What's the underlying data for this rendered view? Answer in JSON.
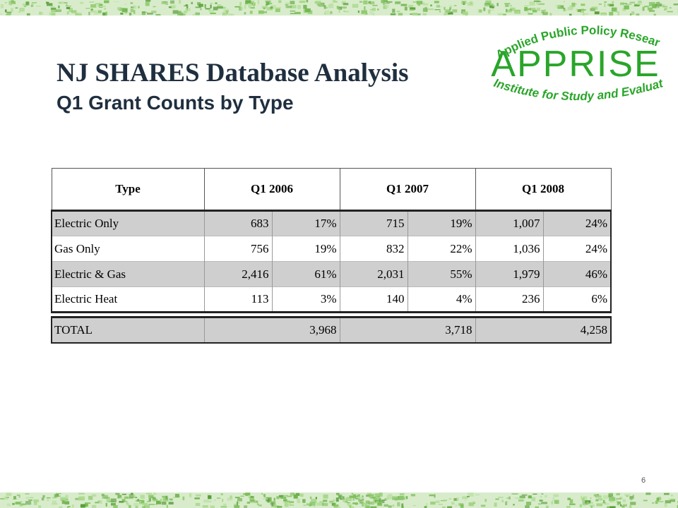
{
  "slide": {
    "title": "NJ SHARES Database Analysis",
    "subtitle": "Q1 Grant Counts by Type",
    "page_number": "6"
  },
  "logo": {
    "top_text": "Applied Public Policy Research",
    "brand": "APPRISE",
    "bottom_text": "Institute for Study and Evaluation",
    "color": "#2aa52a"
  },
  "table": {
    "headers": [
      "Type",
      "Q1 2006",
      "Q1 2007",
      "Q1 2008"
    ],
    "rows": [
      {
        "type": "Electric Only",
        "q2006_n": "683",
        "q2006_p": "17%",
        "q2007_n": "715",
        "q2007_p": "19%",
        "q2008_n": "1,007",
        "q2008_p": "24%"
      },
      {
        "type": "Gas Only",
        "q2006_n": "756",
        "q2006_p": "19%",
        "q2007_n": "832",
        "q2007_p": "22%",
        "q2008_n": "1,036",
        "q2008_p": "24%"
      },
      {
        "type": "Electric & Gas",
        "q2006_n": "2,416",
        "q2006_p": "61%",
        "q2007_n": "2,031",
        "q2007_p": "55%",
        "q2008_n": "1,979",
        "q2008_p": "46%"
      },
      {
        "type": "Electric Heat",
        "q2006_n": "113",
        "q2006_p": "3%",
        "q2007_n": "140",
        "q2007_p": "4%",
        "q2008_n": "236",
        "q2008_p": "6%"
      }
    ],
    "total": {
      "label": "TOTAL",
      "q2006": "3,968",
      "q2007": "3,718",
      "q2008": "4,258"
    }
  },
  "colors": {
    "title": "#1f2f3f",
    "row_shade": "#cfcfcf",
    "band_green": "#7cbf5a"
  }
}
